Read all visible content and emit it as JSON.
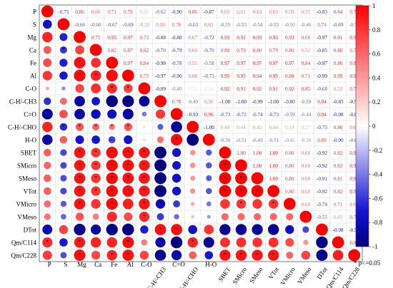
{
  "chart_data": {
    "type": "heatmap",
    "subtype": "correlation-matrix",
    "lower_triangle": "circles sized and colored by r, * marks significance",
    "upper_triangle": "numeric r values colored by sign and magnitude",
    "variables": [
      "P",
      "S",
      "Mg",
      "Ca",
      "Fe",
      "Al",
      "C-O",
      "C-H/-CH3",
      "C=O",
      "C-H/-CHO",
      "H-O",
      "SBET",
      "SMicro",
      "SMeso",
      "VTot",
      "VMicro",
      "VMeso",
      "DTot",
      "Qm/C114",
      "Qm/C228"
    ],
    "matrix": [
      [
        1,
        -0.75,
        0.86,
        0.66,
        0.71,
        0.79,
        0.32,
        -0.62,
        -0.9,
        0.86,
        -0.87,
        0.63,
        0.61,
        0.63,
        0.63,
        0.58,
        0.55,
        -0.83,
        0.84,
        0.77
      ],
      [
        -0.75,
        1,
        -0.66,
        -0.6,
        -0.67,
        -0.69,
        -0.33,
        0.59,
        0.7,
        -0.63,
        0.63,
        -0.55,
        -0.55,
        -0.54,
        -0.55,
        -0.5,
        -0.46,
        0.74,
        -0.69,
        -0.53
      ],
      [
        0.86,
        -0.66,
        1,
        0.75,
        0.95,
        0.97,
        0.73,
        -0.88,
        -0.88,
        0.67,
        -0.72,
        0.93,
        0.92,
        0.93,
        0.93,
        0.93,
        0.68,
        -0.97,
        0.91,
        0.95
      ],
      [
        0.66,
        -0.6,
        0.75,
        1,
        0.82,
        0.87,
        0.82,
        -0.7,
        -0.79,
        0.6,
        -0.7,
        0.8,
        0.79,
        0.8,
        0.79,
        0.8,
        0.52,
        -0.85,
        0.86,
        0.73
      ],
      [
        0.71,
        -0.67,
        0.95,
        0.82,
        1,
        0.97,
        0.84,
        -0.98,
        -0.78,
        0.52,
        -0.58,
        0.97,
        0.97,
        0.97,
        0.97,
        0.97,
        0.84,
        -0.97,
        0.86,
        0.86
      ],
      [
        0.79,
        -0.69,
        0.97,
        0.87,
        0.97,
        1,
        0.75,
        -0.97,
        -0.9,
        0.68,
        -0.73,
        0.95,
        0.95,
        0.94,
        0.95,
        0.88,
        0.71,
        -0.99,
        0.95,
        0.94
      ],
      [
        0.32,
        -0.33,
        0.73,
        0.82,
        0.84,
        0.75,
        1,
        -0.89,
        -0.4,
        0.12,
        0.14,
        0.92,
        0.91,
        0.92,
        0.91,
        0.92,
        0.85,
        -0.68,
        0.52,
        0.74
      ],
      [
        -0.62,
        0.59,
        -0.88,
        -0.7,
        -0.98,
        -0.97,
        -0.89,
        1,
        0.78,
        -0.49,
        0.56,
        -1.0,
        -1.0,
        -0.99,
        -1.0,
        -0.8,
        -0.59,
        0.94,
        -0.85,
        -0.93
      ],
      [
        -0.9,
        0.7,
        -0.88,
        -0.79,
        -0.78,
        -0.9,
        -0.4,
        0.78,
        1,
        -0.93,
        0.96,
        -0.73,
        -0.72,
        -0.74,
        -0.73,
        -0.59,
        -0.44,
        0.94,
        -0.98,
        -0.85
      ],
      [
        0.86,
        -0.63,
        0.67,
        0.6,
        0.52,
        0.68,
        0.12,
        -0.49,
        -0.93,
        1,
        -1.0,
        0.44,
        0.44,
        0.42,
        0.44,
        0.34,
        0.27,
        -0.75,
        0.86,
        0.64
      ],
      [
        -0.87,
        0.63,
        -0.72,
        -0.7,
        -0.58,
        -0.73,
        0.14,
        0.56,
        0.96,
        -1.0,
        1,
        -0.5,
        -0.51,
        -0.49,
        -0.51,
        -0.41,
        -0.3,
        0.8,
        -0.9,
        -0.69
      ],
      [
        0.63,
        -0.55,
        0.93,
        0.8,
        0.97,
        0.95,
        0.92,
        -1.0,
        -0.73,
        0.44,
        -0.5,
        1,
        1.0,
        1.0,
        1.0,
        0.8,
        0.6,
        -0.92,
        0.82,
        0.92
      ],
      [
        0.61,
        -0.55,
        0.92,
        0.79,
        0.97,
        0.95,
        0.91,
        -1.0,
        -0.72,
        0.44,
        -0.51,
        1.0,
        1,
        1.0,
        1.0,
        0.8,
        0.6,
        -0.92,
        0.82,
        0.92
      ],
      [
        0.63,
        -0.54,
        0.93,
        0.8,
        0.97,
        0.94,
        0.92,
        -0.99,
        -0.74,
        0.42,
        -0.49,
        1.0,
        1.0,
        1,
        1.0,
        0.8,
        0.6,
        -0.91,
        0.81,
        0.91
      ],
      [
        0.63,
        -0.55,
        0.93,
        0.79,
        0.97,
        0.95,
        0.91,
        -1.0,
        -0.73,
        0.44,
        -0.51,
        1.0,
        1.0,
        1.0,
        1,
        0.8,
        0.6,
        -0.92,
        0.82,
        0.92
      ],
      [
        0.58,
        -0.5,
        0.93,
        0.8,
        0.97,
        0.88,
        0.92,
        -0.8,
        -0.59,
        0.34,
        -0.41,
        0.8,
        0.8,
        0.8,
        0.8,
        1,
        0.6,
        -0.74,
        0.71,
        0.6
      ],
      [
        0.55,
        -0.46,
        0.68,
        0.52,
        0.84,
        0.71,
        0.85,
        -0.59,
        -0.44,
        0.27,
        -0.3,
        0.6,
        0.6,
        0.6,
        0.6,
        0.6,
        1,
        -0.55,
        0.43,
        0.74
      ],
      [
        -0.83,
        0.74,
        -0.97,
        -0.85,
        -0.97,
        -0.99,
        -0.68,
        0.94,
        0.94,
        -0.75,
        0.8,
        -0.92,
        -0.92,
        -0.91,
        -0.92,
        -0.74,
        -0.55,
        1,
        -0.98,
        -0.95
      ],
      [
        0.84,
        -0.69,
        0.91,
        0.86,
        0.86,
        0.95,
        0.52,
        -0.85,
        -0.98,
        0.86,
        -0.9,
        0.82,
        0.82,
        0.81,
        0.82,
        0.71,
        0.43,
        -0.98,
        1,
        0.88
      ],
      [
        0.77,
        -0.53,
        0.95,
        0.73,
        0.86,
        0.94,
        0.74,
        -0.93,
        -0.85,
        0.64,
        -0.69,
        0.92,
        0.92,
        0.91,
        0.92,
        0.6,
        0.74,
        -0.95,
        0.88,
        1
      ]
    ],
    "significant": [
      [
        3,
        1
      ],
      [
        4,
        2
      ],
      [
        5,
        2
      ],
      [
        5,
        3
      ],
      [
        6,
        4
      ],
      [
        6,
        5
      ],
      [
        7,
        4
      ],
      [
        7,
        5
      ],
      [
        7,
        6
      ],
      [
        9,
        1
      ],
      [
        9,
        2
      ],
      [
        9,
        3
      ],
      [
        9,
        4
      ],
      [
        9,
        5
      ],
      [
        10,
        9
      ],
      [
        10,
        8
      ],
      [
        11,
        2
      ],
      [
        11,
        3
      ],
      [
        11,
        4
      ],
      [
        11,
        5
      ],
      [
        11,
        6
      ],
      [
        11,
        7
      ],
      [
        12,
        2
      ],
      [
        12,
        3
      ],
      [
        12,
        4
      ],
      [
        12,
        5
      ],
      [
        12,
        6
      ],
      [
        12,
        7
      ],
      [
        12,
        11
      ],
      [
        13,
        2
      ],
      [
        13,
        3
      ],
      [
        13,
        4
      ],
      [
        13,
        5
      ],
      [
        13,
        6
      ],
      [
        13,
        7
      ],
      [
        13,
        11
      ],
      [
        13,
        12
      ],
      [
        14,
        2
      ],
      [
        14,
        3
      ],
      [
        14,
        4
      ],
      [
        14,
        5
      ],
      [
        14,
        6
      ],
      [
        14,
        7
      ],
      [
        14,
        11
      ],
      [
        14,
        12
      ],
      [
        14,
        13
      ],
      [
        15,
        2
      ],
      [
        15,
        4
      ],
      [
        15,
        6
      ],
      [
        15,
        7
      ],
      [
        15,
        12
      ],
      [
        15,
        14
      ],
      [
        16,
        6
      ],
      [
        17,
        2
      ],
      [
        17,
        3
      ],
      [
        17,
        4
      ],
      [
        17,
        5
      ],
      [
        17,
        7
      ],
      [
        17,
        8
      ],
      [
        17,
        11
      ],
      [
        17,
        12
      ],
      [
        17,
        13
      ],
      [
        17,
        14
      ],
      [
        17,
        15
      ],
      [
        18,
        0
      ],
      [
        18,
        2
      ],
      [
        18,
        5
      ],
      [
        18,
        8
      ],
      [
        18,
        9
      ],
      [
        18,
        10
      ],
      [
        18,
        17
      ],
      [
        19,
        2
      ],
      [
        19,
        4
      ],
      [
        19,
        5
      ],
      [
        19,
        7
      ],
      [
        19,
        11
      ],
      [
        19,
        12
      ],
      [
        19,
        13
      ],
      [
        19,
        14
      ],
      [
        19,
        17
      ]
    ],
    "colorbar": {
      "ticks": [
        "1",
        "0.8",
        "0.6",
        "0.4",
        "0.2",
        "0",
        "-0.2",
        "-0.4",
        "-0.6",
        "-0.8",
        "-1"
      ],
      "colors": {
        "pos": "#ff0000",
        "neutral": "#ffffff",
        "neg": "#00008b"
      }
    },
    "footnote": "* p<=0.05"
  }
}
